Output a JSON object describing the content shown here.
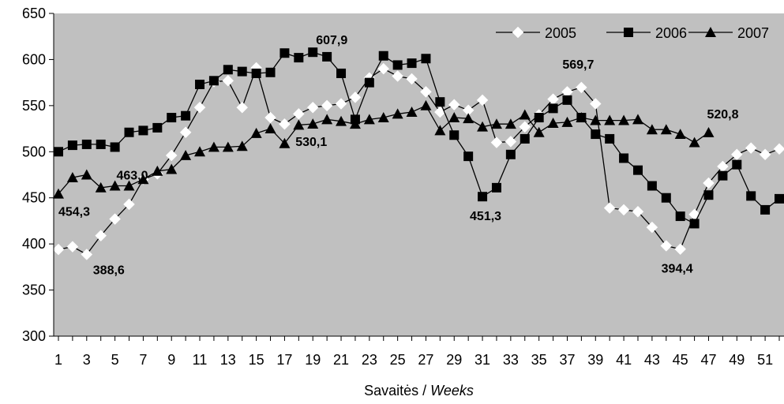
{
  "chart_data": {
    "type": "line",
    "xlabel": "Savaitės / ",
    "xlabel_italic": "Weeks",
    "ylabel": "",
    "ylim": [
      300,
      650
    ],
    "yticks": [
      300,
      350,
      400,
      450,
      500,
      550,
      600,
      650
    ],
    "xlim": [
      1,
      52
    ],
    "xticks": [
      1,
      3,
      5,
      7,
      9,
      11,
      13,
      15,
      17,
      19,
      21,
      23,
      25,
      27,
      29,
      31,
      33,
      35,
      37,
      39,
      41,
      43,
      45,
      47,
      49,
      51
    ],
    "grid": false,
    "plot_background": "#c0c0c0",
    "legend_position": "top-right",
    "series": [
      {
        "name": "2005",
        "marker": "diamond",
        "marker_fill": "#ffffff",
        "line_color": "#000000",
        "x": [
          1,
          2,
          3,
          4,
          5,
          6,
          7,
          8,
          9,
          10,
          11,
          12,
          13,
          14,
          15,
          16,
          17,
          18,
          19,
          20,
          21,
          22,
          23,
          24,
          25,
          26,
          27,
          28,
          29,
          30,
          31,
          32,
          33,
          34,
          35,
          36,
          37,
          38,
          39,
          40,
          41,
          42,
          43,
          44,
          45,
          46,
          47,
          48,
          49,
          50,
          51,
          52
        ],
        "values": [
          394,
          397,
          388.6,
          409,
          427,
          443,
          470,
          476,
          496,
          521,
          548,
          576,
          577,
          548,
          591,
          537,
          530,
          541,
          548,
          550,
          552,
          559,
          580,
          590,
          582,
          579,
          565,
          543,
          551,
          545,
          556,
          510,
          511,
          527,
          540,
          557,
          565,
          569.7,
          552,
          439,
          437,
          435,
          418,
          398,
          394.4,
          432,
          466,
          484,
          497,
          504,
          497,
          503
        ]
      },
      {
        "name": "2006",
        "marker": "square",
        "marker_fill": "#000000",
        "line_color": "#000000",
        "x": [
          1,
          2,
          3,
          4,
          5,
          6,
          7,
          8,
          9,
          10,
          11,
          12,
          13,
          14,
          15,
          16,
          17,
          18,
          19,
          20,
          21,
          22,
          23,
          24,
          25,
          26,
          27,
          28,
          29,
          30,
          31,
          32,
          33,
          34,
          35,
          36,
          37,
          38,
          39,
          40,
          41,
          42,
          43,
          44,
          45,
          46,
          47,
          48,
          49,
          50,
          51,
          52
        ],
        "values": [
          500,
          507,
          508,
          508,
          505,
          521,
          523,
          526,
          537,
          539,
          573,
          577,
          589,
          587,
          585,
          586,
          607,
          602,
          607.9,
          603,
          585,
          535,
          575,
          604,
          594,
          596,
          601,
          554,
          518,
          495,
          451.3,
          461,
          497,
          514,
          537,
          547,
          556,
          537,
          519,
          514,
          493,
          480,
          463,
          450,
          430,
          422,
          453,
          474,
          486,
          452,
          437,
          449
        ]
      },
      {
        "name": "2007",
        "marker": "triangle",
        "marker_fill": "#000000",
        "line_color": "#000000",
        "x": [
          1,
          2,
          3,
          4,
          5,
          6,
          7,
          8,
          9,
          10,
          11,
          12,
          13,
          14,
          15,
          16,
          17,
          18,
          19,
          20,
          21,
          22,
          23,
          24,
          25,
          26,
          27,
          28,
          29,
          30,
          31,
          32,
          33,
          34,
          35,
          36,
          37,
          38,
          39,
          40,
          41,
          42,
          43,
          44,
          45,
          46,
          47
        ],
        "values": [
          454.3,
          472,
          475,
          461,
          463,
          463.0,
          470,
          479,
          481,
          496,
          500,
          505,
          505,
          506,
          520,
          525,
          509,
          529,
          530.1,
          535,
          533,
          530,
          535,
          537,
          541,
          543,
          550,
          523,
          537,
          536,
          527,
          530,
          530,
          540,
          521,
          531,
          532,
          537,
          534,
          534,
          534,
          535,
          524,
          524,
          519,
          510,
          520.8
        ]
      }
    ],
    "annotations": [
      {
        "text": "454,3",
        "x": 1,
        "y": 454.3
      },
      {
        "text": "388,6",
        "x": 3,
        "y": 388.6
      },
      {
        "text": "463,0",
        "x": 6,
        "y": 463.0
      },
      {
        "text": "607,9",
        "x": 19,
        "y": 607.9
      },
      {
        "text": "530,1",
        "x": 19,
        "y": 530.1
      },
      {
        "text": "451,3",
        "x": 31,
        "y": 451.3
      },
      {
        "text": "569,7",
        "x": 38,
        "y": 569.7
      },
      {
        "text": "394,4",
        "x": 45,
        "y": 394.4
      },
      {
        "text": "520,8",
        "x": 47,
        "y": 520.8
      }
    ]
  }
}
